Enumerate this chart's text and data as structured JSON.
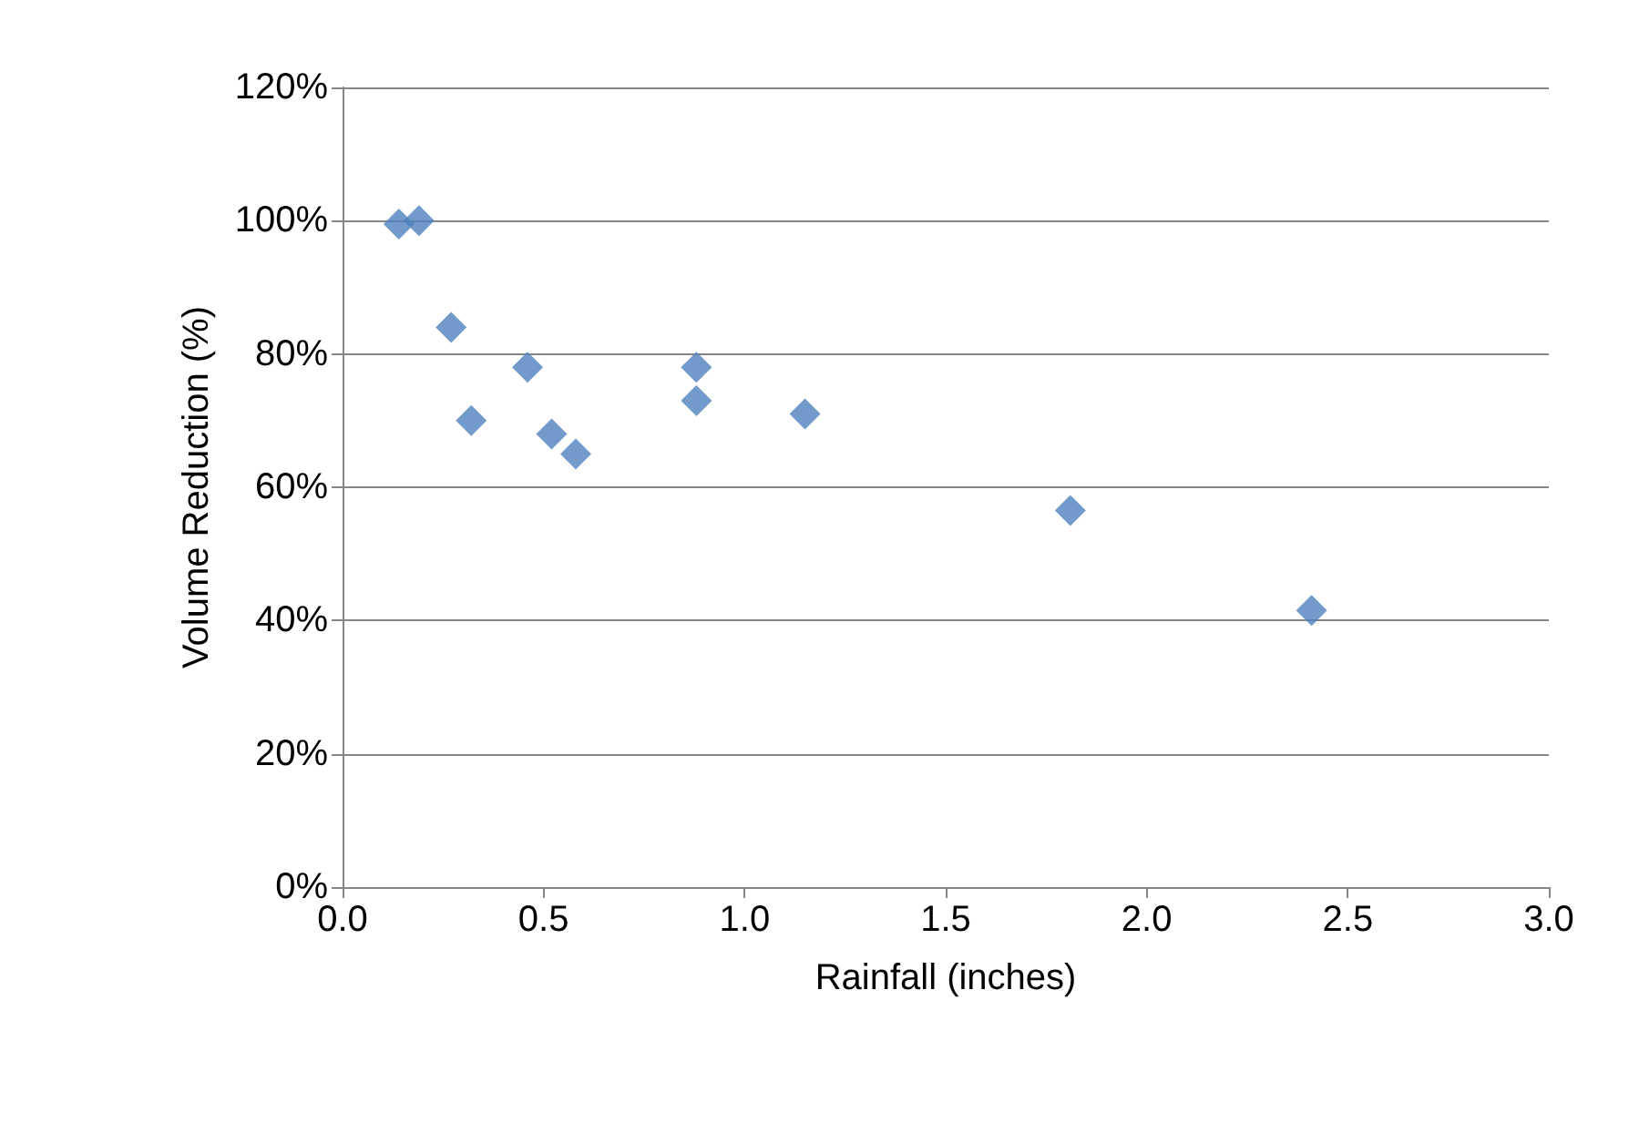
{
  "chart_data": {
    "type": "scatter",
    "xlabel": "Rainfall (inches)",
    "ylabel": "Volume Reduction (%)",
    "x": [
      0.14,
      0.19,
      0.27,
      0.32,
      0.46,
      0.52,
      0.58,
      0.88,
      0.88,
      1.15,
      1.81,
      2.41
    ],
    "series": [
      {
        "color": "#4f81bd",
        "values": [
          99.5,
          100,
          84,
          70,
          78,
          68,
          65,
          78,
          73,
          71,
          56.5,
          41.5
        ]
      }
    ],
    "xlim": [
      0,
      3
    ],
    "xticks": [
      {
        "value": 0,
        "label": "0.0"
      },
      {
        "value": 0.5,
        "label": "0.5"
      },
      {
        "value": 1,
        "label": "1.0"
      },
      {
        "value": 1.5,
        "label": "1.5"
      },
      {
        "value": 2,
        "label": "2.0"
      },
      {
        "value": 2.5,
        "label": "2.5"
      },
      {
        "value": 3,
        "label": "3.0"
      }
    ],
    "ylim": [
      0,
      120
    ],
    "yticks": [
      {
        "value": 0,
        "label": "0%"
      },
      {
        "value": 20,
        "label": "20%"
      },
      {
        "value": 40,
        "label": "40%"
      },
      {
        "value": 60,
        "label": "60%"
      },
      {
        "value": 80,
        "label": "80%"
      },
      {
        "value": 100,
        "label": "100%"
      },
      {
        "value": 120,
        "label": "120%"
      }
    ],
    "grid": "y",
    "marker": "diamond"
  }
}
